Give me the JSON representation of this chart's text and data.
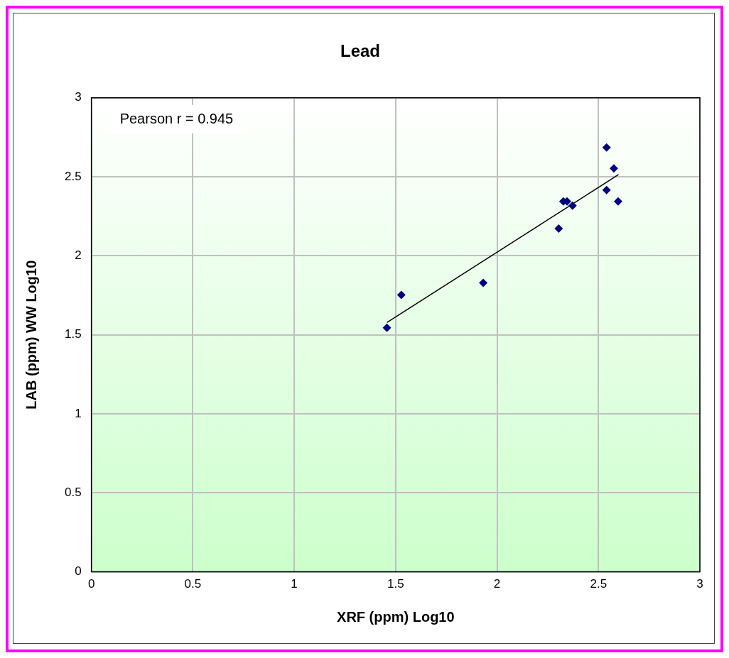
{
  "chart_data": {
    "type": "scatter",
    "title": "Lead",
    "xlabel": "XRF (ppm) Log10",
    "ylabel": "LAB (ppm) WW Log10",
    "xlim": [
      0,
      3
    ],
    "xticks": [
      0,
      0.5,
      1,
      1.5,
      2,
      2.5,
      3
    ],
    "ylim": [
      0,
      3
    ],
    "yticks": [
      0,
      0.5,
      1,
      1.5,
      2,
      2.5,
      3
    ],
    "grid": true,
    "legend": false,
    "marker": "diamond",
    "annotations": [
      "Pearson r = 0.945"
    ],
    "series": [
      {
        "color": "#000080",
        "x": [
          1.457,
          1.528,
          1.932,
          2.304,
          2.327,
          2.345,
          2.372,
          2.54,
          2.576,
          2.54,
          2.597
        ],
        "values": [
          1.545,
          1.753,
          1.829,
          2.173,
          2.344,
          2.344,
          2.317,
          2.686,
          2.553,
          2.416,
          2.344
        ]
      },
      {
        "type": "line",
        "color": "#000000",
        "marker": "none",
        "line_style": "solid",
        "x": [
          1.457,
          2.599
        ],
        "values": [
          1.578,
          2.514
        ]
      }
    ]
  }
}
